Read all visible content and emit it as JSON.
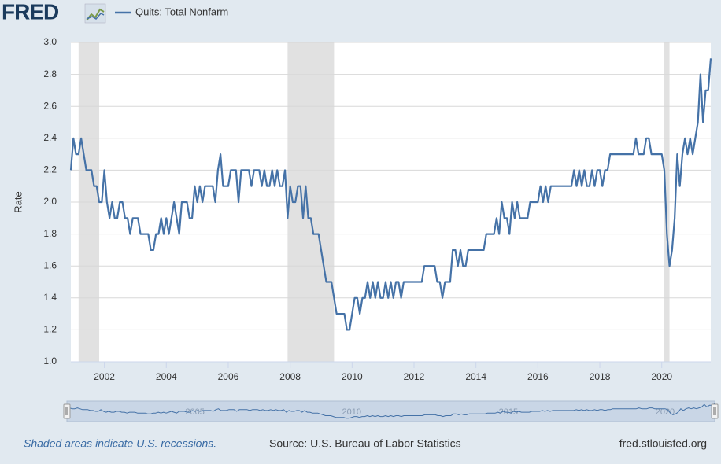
{
  "logo": "FRED",
  "footer": {
    "note": "Shaded areas indicate U.S. recessions.",
    "source": "Source: U.S. Bureau of Labor Statistics",
    "site": "fred.stlouisfed.org"
  },
  "chart_data": {
    "type": "line",
    "ylabel": "Rate",
    "grid": true,
    "legend": "top-left",
    "xlim": [
      2000.917,
      2021.583
    ],
    "xticks": [
      2002,
      2004,
      2006,
      2008,
      2010,
      2012,
      2014,
      2016,
      2018,
      2020
    ],
    "ylim": [
      1,
      3
    ],
    "yticks": [
      {
        "value": 1,
        "label": "1.0"
      },
      1.2,
      1.4,
      1.6,
      1.8,
      {
        "value": 2,
        "label": "2.0"
      },
      2.2,
      2.4,
      2.6,
      2.8,
      {
        "value": 3,
        "label": "3.0"
      }
    ],
    "recessions": [
      [
        2001.167,
        2001.833
      ],
      [
        2007.917,
        2009.417
      ],
      [
        2020.083,
        2020.25
      ]
    ],
    "navigator_ticks": [
      2005,
      2010,
      2015,
      2020
    ],
    "x": [
      2000.917,
      2001,
      2001.083,
      2001.167,
      2001.25,
      2001.333,
      2001.417,
      2001.5,
      2001.583,
      2001.667,
      2001.75,
      2001.833,
      2001.917,
      2002,
      2002.083,
      2002.167,
      2002.25,
      2002.333,
      2002.417,
      2002.5,
      2002.583,
      2002.667,
      2002.75,
      2002.833,
      2002.917,
      2003,
      2003.083,
      2003.167,
      2003.25,
      2003.333,
      2003.417,
      2003.5,
      2003.583,
      2003.667,
      2003.75,
      2003.833,
      2003.917,
      2004,
      2004.083,
      2004.167,
      2004.25,
      2004.333,
      2004.417,
      2004.5,
      2004.583,
      2004.667,
      2004.75,
      2004.833,
      2004.917,
      2005,
      2005.083,
      2005.167,
      2005.25,
      2005.333,
      2005.417,
      2005.5,
      2005.583,
      2005.667,
      2005.75,
      2005.833,
      2005.917,
      2006,
      2006.083,
      2006.167,
      2006.25,
      2006.333,
      2006.417,
      2006.5,
      2006.583,
      2006.667,
      2006.75,
      2006.833,
      2006.917,
      2007,
      2007.083,
      2007.167,
      2007.25,
      2007.333,
      2007.417,
      2007.5,
      2007.583,
      2007.667,
      2007.75,
      2007.833,
      2007.917,
      2008,
      2008.083,
      2008.167,
      2008.25,
      2008.333,
      2008.417,
      2008.5,
      2008.583,
      2008.667,
      2008.75,
      2008.833,
      2008.917,
      2009,
      2009.083,
      2009.167,
      2009.25,
      2009.333,
      2009.417,
      2009.5,
      2009.583,
      2009.667,
      2009.75,
      2009.833,
      2009.917,
      2010,
      2010.083,
      2010.167,
      2010.25,
      2010.333,
      2010.417,
      2010.5,
      2010.583,
      2010.667,
      2010.75,
      2010.833,
      2010.917,
      2011,
      2011.083,
      2011.167,
      2011.25,
      2011.333,
      2011.417,
      2011.5,
      2011.583,
      2011.667,
      2011.75,
      2011.833,
      2011.917,
      2012,
      2012.083,
      2012.167,
      2012.25,
      2012.333,
      2012.417,
      2012.5,
      2012.583,
      2012.667,
      2012.75,
      2012.833,
      2012.917,
      2013,
      2013.083,
      2013.167,
      2013.25,
      2013.333,
      2013.417,
      2013.5,
      2013.583,
      2013.667,
      2013.75,
      2013.833,
      2013.917,
      2014,
      2014.083,
      2014.167,
      2014.25,
      2014.333,
      2014.417,
      2014.5,
      2014.583,
      2014.667,
      2014.75,
      2014.833,
      2014.917,
      2015,
      2015.083,
      2015.167,
      2015.25,
      2015.333,
      2015.417,
      2015.5,
      2015.583,
      2015.667,
      2015.75,
      2015.833,
      2015.917,
      2016,
      2016.083,
      2016.167,
      2016.25,
      2016.333,
      2016.417,
      2016.5,
      2016.583,
      2016.667,
      2016.75,
      2016.833,
      2016.917,
      2017,
      2017.083,
      2017.167,
      2017.25,
      2017.333,
      2017.417,
      2017.5,
      2017.583,
      2017.667,
      2017.75,
      2017.833,
      2017.917,
      2018,
      2018.083,
      2018.167,
      2018.25,
      2018.333,
      2018.417,
      2018.5,
      2018.583,
      2018.667,
      2018.75,
      2018.833,
      2018.917,
      2019,
      2019.083,
      2019.167,
      2019.25,
      2019.333,
      2019.417,
      2019.5,
      2019.583,
      2019.667,
      2019.75,
      2019.833,
      2019.917,
      2020,
      2020.083,
      2020.167,
      2020.25,
      2020.333,
      2020.417,
      2020.5,
      2020.583,
      2020.667,
      2020.75,
      2020.833,
      2020.917,
      2021,
      2021.083,
      2021.167,
      2021.25,
      2021.333,
      2021.417,
      2021.5,
      2021.583
    ],
    "series": [
      {
        "name": "Quits: Total Nonfarm",
        "color": "#4572a7",
        "values": [
          2.2,
          2.4,
          2.3,
          2.3,
          2.4,
          2.3,
          2.2,
          2.2,
          2.2,
          2.1,
          2.1,
          2.0,
          2.0,
          2.2,
          2.0,
          1.9,
          2.0,
          1.9,
          1.9,
          2.0,
          2.0,
          1.9,
          1.9,
          1.8,
          1.9,
          1.9,
          1.9,
          1.8,
          1.8,
          1.8,
          1.8,
          1.7,
          1.7,
          1.8,
          1.8,
          1.9,
          1.8,
          1.9,
          1.8,
          1.9,
          2.0,
          1.9,
          1.8,
          2.0,
          2.0,
          2.0,
          1.9,
          1.9,
          2.1,
          2.0,
          2.1,
          2.0,
          2.1,
          2.1,
          2.1,
          2.1,
          2.0,
          2.2,
          2.3,
          2.1,
          2.1,
          2.1,
          2.2,
          2.2,
          2.2,
          2.0,
          2.2,
          2.2,
          2.2,
          2.2,
          2.1,
          2.2,
          2.2,
          2.2,
          2.1,
          2.2,
          2.1,
          2.1,
          2.2,
          2.1,
          2.2,
          2.1,
          2.1,
          2.2,
          1.9,
          2.1,
          2.0,
          2.0,
          2.1,
          2.1,
          1.9,
          2.1,
          1.9,
          1.9,
          1.8,
          1.8,
          1.8,
          1.7,
          1.6,
          1.5,
          1.5,
          1.5,
          1.4,
          1.3,
          1.3,
          1.3,
          1.3,
          1.2,
          1.2,
          1.3,
          1.4,
          1.4,
          1.3,
          1.4,
          1.4,
          1.5,
          1.4,
          1.5,
          1.4,
          1.5,
          1.4,
          1.4,
          1.5,
          1.4,
          1.5,
          1.4,
          1.5,
          1.5,
          1.4,
          1.5,
          1.5,
          1.5,
          1.5,
          1.5,
          1.5,
          1.5,
          1.5,
          1.6,
          1.6,
          1.6,
          1.6,
          1.6,
          1.5,
          1.5,
          1.4,
          1.5,
          1.5,
          1.5,
          1.7,
          1.7,
          1.6,
          1.7,
          1.6,
          1.6,
          1.7,
          1.7,
          1.7,
          1.7,
          1.7,
          1.7,
          1.7,
          1.8,
          1.8,
          1.8,
          1.8,
          1.9,
          1.8,
          2.0,
          1.9,
          1.9,
          1.8,
          2.0,
          1.9,
          2.0,
          1.9,
          1.9,
          1.9,
          1.9,
          2.0,
          2.0,
          2.0,
          2.0,
          2.1,
          2.0,
          2.1,
          2.0,
          2.1,
          2.1,
          2.1,
          2.1,
          2.1,
          2.1,
          2.1,
          2.1,
          2.1,
          2.2,
          2.1,
          2.2,
          2.1,
          2.2,
          2.1,
          2.1,
          2.2,
          2.1,
          2.2,
          2.2,
          2.1,
          2.2,
          2.2,
          2.3,
          2.3,
          2.3,
          2.3,
          2.3,
          2.3,
          2.3,
          2.3,
          2.3,
          2.3,
          2.4,
          2.3,
          2.3,
          2.3,
          2.4,
          2.4,
          2.3,
          2.3,
          2.3,
          2.3,
          2.3,
          2.2,
          1.8,
          1.6,
          1.7,
          1.9,
          2.3,
          2.1,
          2.3,
          2.4,
          2.3,
          2.4,
          2.3,
          2.4,
          2.5,
          2.8,
          2.5,
          2.7,
          2.7,
          2.9
        ]
      }
    ]
  }
}
